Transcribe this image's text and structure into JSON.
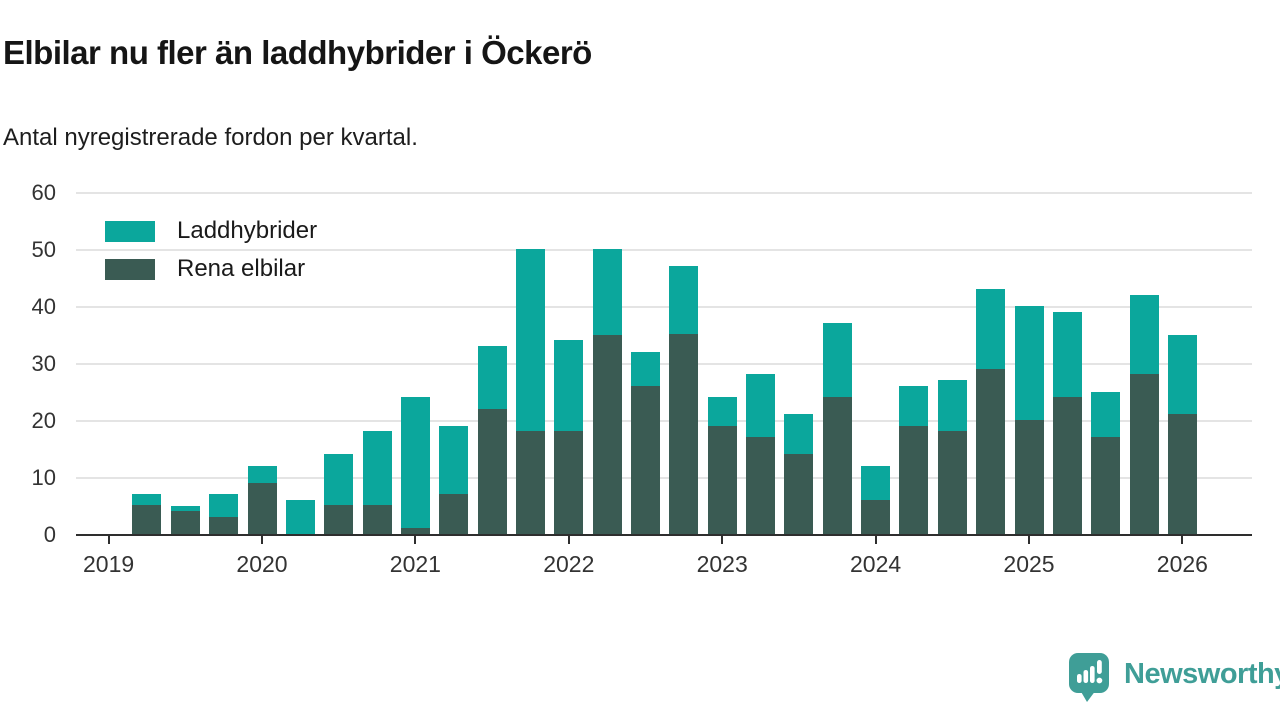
{
  "header": {
    "note": "header text lives in chart_data.title / chart_data.subtitle"
  },
  "chart_data": {
    "type": "bar",
    "stacked": true,
    "title": "Elbilar nu fler än laddhybrider i Öckerö",
    "subtitle": "Antal nyregistrerade fordon per kvartal.",
    "x": [
      "2019 Q2",
      "2019 Q3",
      "2019 Q4",
      "2020 Q1",
      "2020 Q2",
      "2020 Q3",
      "2020 Q4",
      "2021 Q1",
      "2021 Q2",
      "2021 Q3",
      "2021 Q4",
      "2022 Q1",
      "2022 Q2",
      "2022 Q3",
      "2022 Q4",
      "2023 Q1",
      "2023 Q2",
      "2023 Q3",
      "2023 Q4",
      "2024 Q1",
      "2024 Q2",
      "2024 Q3",
      "2024 Q4",
      "2025 Q1",
      "2025 Q2",
      "2025 Q3",
      "2025 Q4",
      "2026 Q1"
    ],
    "series": [
      {
        "name": "Laddhybrider",
        "color": "#0ba79c",
        "stack_position": "top",
        "values": [
          2,
          1,
          4,
          3,
          6,
          9,
          13,
          23,
          12,
          11,
          32,
          16,
          15,
          6,
          12,
          5,
          11,
          7,
          13,
          6,
          7,
          9,
          14,
          20,
          15,
          8,
          14,
          14
        ]
      },
      {
        "name": "Rena elbilar",
        "color": "#3a5b53",
        "stack_position": "bottom",
        "values": [
          5,
          4,
          3,
          9,
          0,
          5,
          5,
          1,
          7,
          22,
          18,
          18,
          35,
          26,
          35,
          19,
          17,
          14,
          24,
          6,
          19,
          18,
          29,
          20,
          24,
          17,
          28,
          21
        ]
      }
    ],
    "totals": [
      7,
      5,
      7,
      12,
      6,
      14,
      18,
      24,
      19,
      33,
      50,
      34,
      50,
      32,
      47,
      24,
      28,
      21,
      37,
      12,
      26,
      27,
      43,
      40,
      39,
      25,
      42,
      35
    ],
    "ylim": [
      0,
      60
    ],
    "yticks": [
      0,
      10,
      20,
      30,
      40,
      50,
      60
    ],
    "xticks": [
      "2019",
      "2020",
      "2021",
      "2022",
      "2023",
      "2024",
      "2025",
      "2026"
    ],
    "grid": "horizontal",
    "legend_position": "top-left-inside"
  },
  "branding": {
    "wordmark": "Newsworthy",
    "color": "#3f9e97",
    "icon": "speech-bubble-bar-chart-icon"
  }
}
